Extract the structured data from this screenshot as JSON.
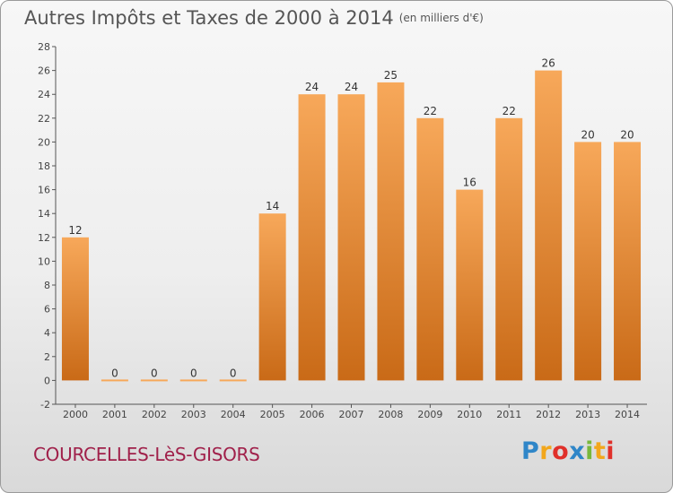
{
  "header": {
    "title": "Autres Impôts et Taxes de 2000 à 2014",
    "unit": "(en milliers d'€)"
  },
  "footer": {
    "town": "COURCELLES-LèS-GISORS",
    "logo_letters": [
      "P",
      "r",
      "o",
      "x",
      "i",
      "t",
      "i"
    ],
    "logo_colors": [
      "#2f86c8",
      "#f2a71c",
      "#e0302a",
      "#2f86c8",
      "#78b83b",
      "#f2a71c",
      "#e0302a"
    ]
  },
  "chart_data": {
    "type": "bar",
    "title": "Autres Impôts et Taxes de 2000 à 2014",
    "categories": [
      "2000",
      "2001",
      "2002",
      "2003",
      "2004",
      "2005",
      "2006",
      "2007",
      "2008",
      "2009",
      "2010",
      "2011",
      "2012",
      "2013",
      "2014"
    ],
    "values": [
      12,
      0,
      0,
      0,
      0,
      14,
      24,
      24,
      25,
      22,
      16,
      22,
      26,
      20,
      20
    ],
    "ylim": [
      -2,
      28
    ],
    "yticks": [
      -2,
      0,
      2,
      4,
      6,
      8,
      10,
      12,
      14,
      16,
      18,
      20,
      22,
      24,
      26,
      28
    ],
    "grid": false,
    "bar_color_top": "#f7a85a",
    "bar_color_bottom": "#c96a17"
  }
}
